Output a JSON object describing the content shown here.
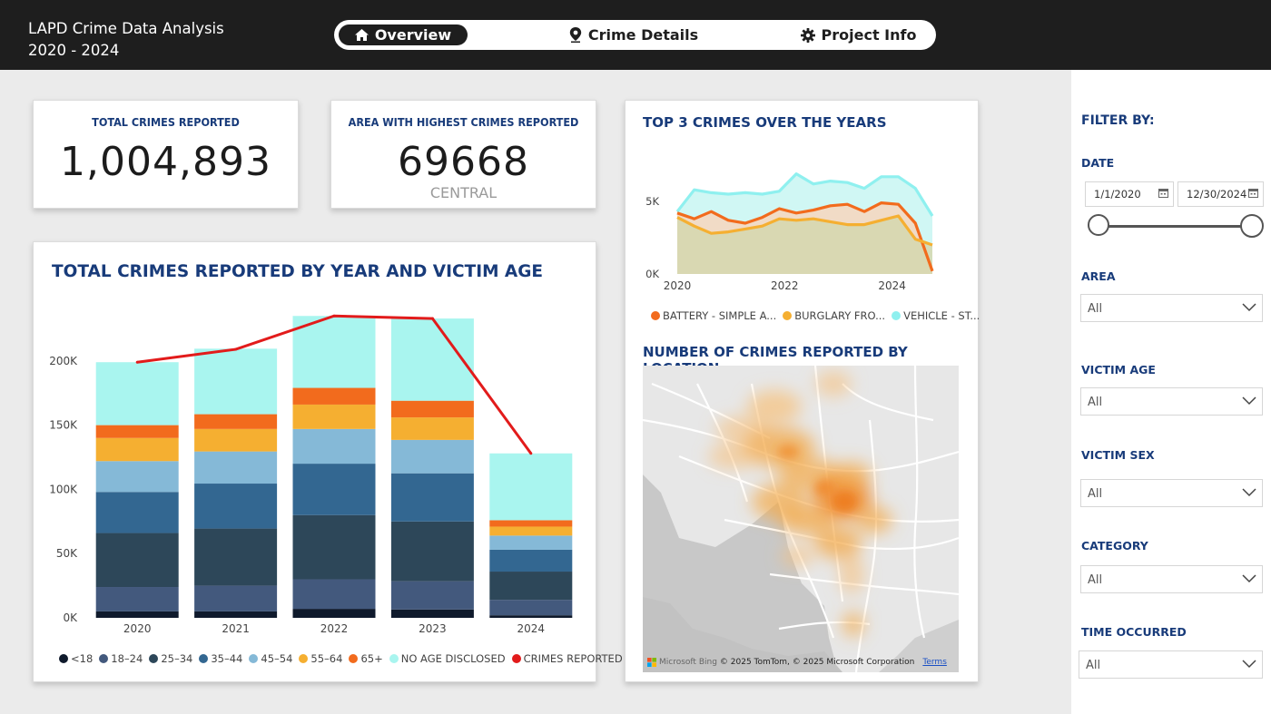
{
  "header": {
    "title_line1": "LAPD Crime Data Analysis",
    "title_line2": "2020 - 2024",
    "tabs": [
      {
        "label": "Overview",
        "icon": "home-icon",
        "active": true
      },
      {
        "label": "Crime Details",
        "icon": "map-pin-icon",
        "active": false
      },
      {
        "label": "Project Info",
        "icon": "gear-icon",
        "active": false
      }
    ]
  },
  "kpis": {
    "total_label": "TOTAL CRIMES REPORTED",
    "total_value": "1,004,893",
    "area_label": "AREA WITH HIGHEST CRIMES REPORTED",
    "area_value": "69668",
    "area_name": "CENTRAL"
  },
  "bar_chart": {
    "title": "TOTAL CRIMES REPORTED BY YEAR AND VICTIM AGE"
  },
  "line_chart": {
    "title": "TOP 3 CRIMES OVER THE YEARS"
  },
  "map": {
    "title": "NUMBER OF CRIMES REPORTED BY LOCATION",
    "logo_text": "Microsoft Bing",
    "attribution": "© 2025 TomTom, © 2025 Microsoft Corporation",
    "terms_link": "Terms"
  },
  "filters": {
    "title": "FILTER BY:",
    "date_label": "DATE",
    "date_start": "1/1/2020",
    "date_end": "12/30/2024",
    "date_range_fraction": [
      0,
      1
    ],
    "dropdowns": [
      {
        "label": "AREA",
        "value": "All"
      },
      {
        "label": "VICTIM AGE",
        "value": "All"
      },
      {
        "label": "VICTIM SEX",
        "value": "All"
      },
      {
        "label": "CATEGORY",
        "value": "All"
      },
      {
        "label": "TIME OCCURRED",
        "value": "All"
      }
    ]
  },
  "colors": {
    "header_bg": "#1e1e1e",
    "title_blue": "#183b7a",
    "line_red": "#e21b1b"
  },
  "chart_data": [
    {
      "type": "bar",
      "stacked": true,
      "title": "TOTAL CRIMES REPORTED BY YEAR AND VICTIM AGE",
      "categories": [
        "2020",
        "2021",
        "2022",
        "2023",
        "2024"
      ],
      "ylim": [
        0,
        250000
      ],
      "yticks": [
        0,
        50000,
        100000,
        150000,
        200000
      ],
      "ytick_labels": [
        "0K",
        "50K",
        "100K",
        "150K",
        "200K"
      ],
      "legend_position": "bottom",
      "series": [
        {
          "name": "<18",
          "color": "#0f1a2c",
          "values": [
            5000,
            5000,
            7000,
            6500,
            2000
          ]
        },
        {
          "name": "18–24",
          "color": "#43597d",
          "values": [
            19000,
            20000,
            23000,
            22000,
            12000
          ]
        },
        {
          "name": "25–34",
          "color": "#2d4759",
          "values": [
            42000,
            44500,
            50000,
            46500,
            22000
          ]
        },
        {
          "name": "35–44",
          "color": "#336791",
          "values": [
            32000,
            35000,
            40000,
            37500,
            17000
          ]
        },
        {
          "name": "45–54",
          "color": "#85b9d7",
          "values": [
            24000,
            25000,
            27000,
            26000,
            11000
          ]
        },
        {
          "name": "55–64",
          "color": "#f5af31",
          "values": [
            18000,
            17500,
            19000,
            17500,
            7000
          ]
        },
        {
          "name": "65+",
          "color": "#f26b1d",
          "values": [
            10000,
            11500,
            13000,
            13000,
            5000
          ]
        },
        {
          "name": "NO AGE DISCLOSED",
          "color": "#a9f5ef",
          "values": [
            49000,
            51000,
            56000,
            64000,
            52000
          ]
        }
      ],
      "line_series": {
        "name": "CRIMES REPORTED",
        "color": "#e21b1b",
        "values": [
          199000,
          209000,
          235000,
          233000,
          128000
        ]
      }
    },
    {
      "type": "area",
      "title": "TOP 3 CRIMES OVER THE YEARS",
      "x_start": 2020,
      "x_end": 2024.75,
      "ylim": [
        0,
        8000
      ],
      "yticks": [
        0,
        5000
      ],
      "ytick_labels": [
        "0K",
        "5K"
      ],
      "xticks": [
        2020,
        2022,
        2024
      ],
      "legend_position": "bottom",
      "series": [
        {
          "name": "VEHICLE - STOLEN",
          "legend_label": "VEHICLE - ST...",
          "color": "#8ff0ef",
          "fill": "#c8f6f2",
          "values": [
            4300,
            5800,
            5600,
            5500,
            5600,
            5500,
            5700,
            6900,
            6200,
            6400,
            6300,
            5900,
            6700,
            6700,
            5900,
            4000
          ]
        },
        {
          "name": "BATTERY - SIMPLE ASSAULT",
          "legend_label": "BATTERY - SIMPLE A...",
          "color": "#f26b1d",
          "fill": "#f7d6bd",
          "values": [
            4200,
            3800,
            4300,
            3700,
            3500,
            3900,
            4500,
            4200,
            4400,
            4700,
            4800,
            4300,
            4900,
            4800,
            3500,
            200
          ]
        },
        {
          "name": "BURGLARY FROM VEHICLE",
          "legend_label": "BURGLARY FRO...",
          "color": "#f5af31",
          "fill": "#d5d7ae",
          "values": [
            3900,
            3300,
            2800,
            2900,
            3100,
            3300,
            3800,
            3700,
            3800,
            3600,
            3400,
            3400,
            3700,
            4000,
            2400,
            2000
          ]
        }
      ]
    }
  ]
}
